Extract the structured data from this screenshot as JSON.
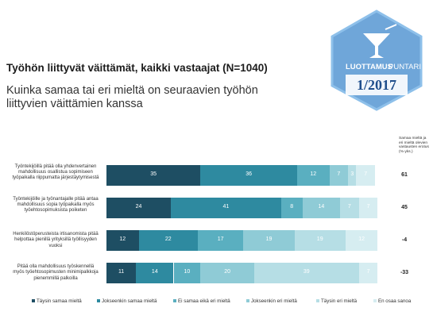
{
  "header": {
    "title": "Työhön liittyvät väittämät, kaikki vastaajat (N=1040)",
    "subtitle": "Kuinka samaa tai eri mieltä on seuraavien työhön liittyvien väittämien kanssa"
  },
  "badge": {
    "brand_a": "LUOTTAMUS",
    "brand_b": "PUNTARI",
    "issue": "1/2017",
    "colors": {
      "hex": "#6fa6d9",
      "inner": "#ffffff",
      "issue_text": "#1f4e8c"
    }
  },
  "chart_data": {
    "type": "bar",
    "orientation": "horizontal",
    "stacked": true,
    "categories": [
      "Työntekijöillä pitää olla yhdenvertainen mahdollisuus osallistua sopimiseen työpaikalla riippumatta järjestäytymisestä",
      "Työntekijöille ja työnantajalle pitää antaa mahdollisuus sopia työpaikalla myös työehtosopimuksista poiketen",
      "Henkilöstöperusteista irtisanomista pitää helpottaa pienillä yrityksillä työllisyyden vuoksi",
      "Pitää olla mahdollisuus työskennellä myös työehtosopimusten minimipalkkoja pienemmillä palkoilla"
    ],
    "series": [
      {
        "name": "Täysin samaa mieltä",
        "color": "#1e4e63",
        "values": [
          35,
          24,
          12,
          11
        ]
      },
      {
        "name": "Jokseenkin samaa mieltä",
        "color": "#2e8aa0",
        "values": [
          36,
          41,
          22,
          14
        ]
      },
      {
        "name": "Ei samaa eikä eri mieltä",
        "color": "#5aafc0",
        "values": [
          12,
          8,
          17,
          10
        ]
      },
      {
        "name": "Jokseenkin eri mieltä",
        "color": "#8fcbd6",
        "values": [
          7,
          14,
          19,
          20
        ]
      },
      {
        "name": "Täysin eri mieltä",
        "color": "#b6dee5",
        "values": [
          3,
          7,
          19,
          39
        ]
      },
      {
        "name": "En osaa sanoa",
        "color": "#d6edf1",
        "values": [
          7,
          7,
          12,
          7
        ]
      }
    ],
    "difference_header": "Samaa mieltä ja eri mieltä olevien vastausten erotus (%-yks.)",
    "difference": [
      61,
      45,
      -4,
      -33
    ],
    "xlim": [
      0,
      100
    ],
    "legend_position": "bottom"
  }
}
